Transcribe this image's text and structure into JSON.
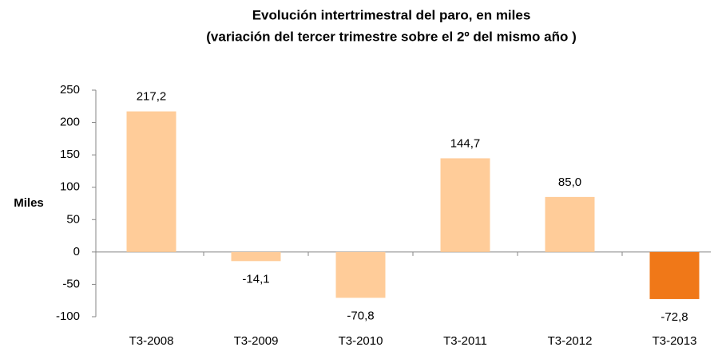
{
  "chart_data": {
    "type": "bar",
    "title": "Evolución intertrimestral del paro, en miles",
    "subtitle": "(variación del tercer trimestre  sobre el 2º del  mismo año )",
    "y_label": "Miles",
    "categories": [
      "T3-2008",
      "T3-2009",
      "T3-2010",
      "T3-2011",
      "T3-2012",
      "T3-2013"
    ],
    "values": [
      217.2,
      -14.1,
      -70.8,
      144.7,
      85.0,
      -72.8
    ],
    "value_labels": [
      "217,2",
      "-14,1",
      "-70,8",
      "144,7",
      "85,0",
      "-72,8"
    ],
    "colors": [
      "#ffcc99",
      "#ffcc99",
      "#ffcc99",
      "#ffcc99",
      "#ffcc99",
      "#f07818"
    ],
    "ylim": [
      -100,
      250
    ],
    "yticks": [
      -100,
      -50,
      0,
      50,
      100,
      150,
      200,
      250
    ],
    "grid": false
  }
}
